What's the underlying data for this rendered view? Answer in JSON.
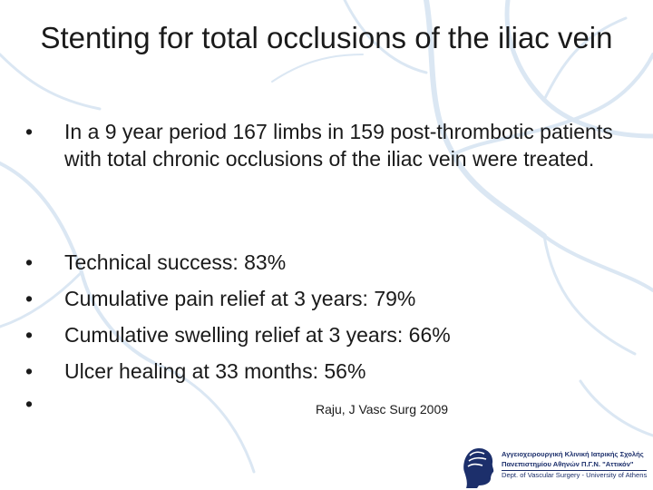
{
  "slide": {
    "title": "Stenting for total occlusions of the iliac vein",
    "bullets": [
      {
        "dot": "•",
        "text": "In a 9 year period 167 limbs in 159 post-thrombotic patients with total chronic occlusions of the iliac vein were treated."
      },
      {
        "dot": "•",
        "text": "Technical success: 83%"
      },
      {
        "dot": "•",
        "text": "Cumulative pain relief at 3 years: 79%"
      },
      {
        "dot": "•",
        "text": "Cumulative swelling relief at 3 years: 66%"
      },
      {
        "dot": "•",
        "text": "Ulcer healing at 33 months: 56%"
      },
      {
        "dot": "•",
        "text": ""
      }
    ],
    "citation": "Raju, J Vasc Surg 2009"
  },
  "footer": {
    "line1": "Αγγειοχειρουργική Κλινική Ιατρικής Σχολής",
    "line2": "Πανεπιστημίου Αθηνών Π.Γ.Ν. \"Αττικόν\"",
    "line3": "Dept. of Vascular Surgery - University of Athens",
    "logo_icon": "university-athens-logo-icon"
  },
  "colors": {
    "background": "#ffffff",
    "vein_pattern": "#d9e6f3",
    "footer_text": "#1c2f6b"
  }
}
